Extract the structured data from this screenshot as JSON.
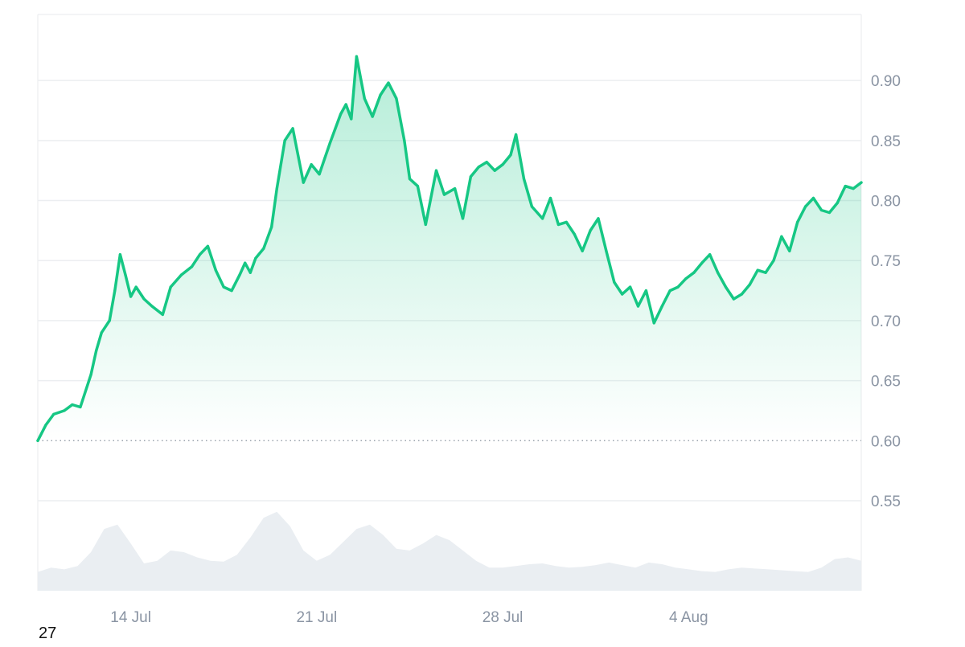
{
  "chart_data": {
    "type": "line",
    "title": "",
    "xlabel": "",
    "ylabel": "",
    "x_tick_labels": [
      "14 Jul",
      "21 Jul",
      "28 Jul",
      "4 Aug"
    ],
    "x_tick_values": [
      3.5,
      10.5,
      17.5,
      24.5
    ],
    "x_range": [
      0,
      31
    ],
    "ylim": [
      0.475,
      0.955
    ],
    "y_ticks": [
      0.55,
      0.6,
      0.65,
      0.7,
      0.75,
      0.8,
      0.85,
      0.9
    ],
    "y_tick_labels": [
      "0.55",
      "0.60",
      "0.65",
      "0.70",
      "0.75",
      "0.80",
      "0.85",
      "0.90"
    ],
    "baseline": 0.6,
    "grid": true,
    "series": [
      {
        "color": "#16c784",
        "x": [
          0,
          0.3,
          0.6,
          1.0,
          1.3,
          1.6,
          2.0,
          2.2,
          2.4,
          2.7,
          2.9,
          3.1,
          3.3,
          3.5,
          3.7,
          4.0,
          4.3,
          4.7,
          5.0,
          5.4,
          5.8,
          6.1,
          6.4,
          6.7,
          7.0,
          7.3,
          7.6,
          7.8,
          8.0,
          8.2,
          8.5,
          8.8,
          9.0,
          9.3,
          9.6,
          10.0,
          10.3,
          10.6,
          10.8,
          11.0,
          11.2,
          11.4,
          11.6,
          11.8,
          12.0,
          12.3,
          12.6,
          12.9,
          13.2,
          13.5,
          13.8,
          14.0,
          14.3,
          14.6,
          15.0,
          15.3,
          15.7,
          16.0,
          16.3,
          16.6,
          16.9,
          17.2,
          17.5,
          17.8,
          18.0,
          18.3,
          18.6,
          19.0,
          19.3,
          19.6,
          19.9,
          20.2,
          20.5,
          20.8,
          21.1,
          21.4,
          21.7,
          22.0,
          22.3,
          22.6,
          22.9,
          23.2,
          23.5,
          23.8,
          24.1,
          24.4,
          24.7,
          25.0,
          25.3,
          25.6,
          25.9,
          26.2,
          26.5,
          26.8,
          27.1,
          27.4,
          27.7,
          28.0,
          28.3,
          28.6,
          28.9,
          29.2,
          29.5,
          29.8,
          30.1,
          30.4,
          30.7,
          31.0
        ],
        "y": [
          0.6,
          0.613,
          0.622,
          0.625,
          0.63,
          0.628,
          0.655,
          0.675,
          0.69,
          0.7,
          0.725,
          0.755,
          0.738,
          0.72,
          0.728,
          0.718,
          0.712,
          0.705,
          0.728,
          0.738,
          0.745,
          0.755,
          0.762,
          0.742,
          0.728,
          0.725,
          0.738,
          0.748,
          0.74,
          0.752,
          0.76,
          0.778,
          0.81,
          0.85,
          0.86,
          0.815,
          0.83,
          0.822,
          0.835,
          0.848,
          0.86,
          0.872,
          0.88,
          0.868,
          0.92,
          0.885,
          0.87,
          0.888,
          0.898,
          0.885,
          0.85,
          0.818,
          0.812,
          0.78,
          0.825,
          0.805,
          0.81,
          0.785,
          0.82,
          0.828,
          0.832,
          0.825,
          0.83,
          0.838,
          0.855,
          0.818,
          0.795,
          0.785,
          0.802,
          0.78,
          0.782,
          0.772,
          0.758,
          0.775,
          0.785,
          0.758,
          0.732,
          0.722,
          0.728,
          0.712,
          0.725,
          0.698,
          0.712,
          0.725,
          0.728,
          0.735,
          0.74,
          0.748,
          0.755,
          0.74,
          0.728,
          0.718,
          0.722,
          0.73,
          0.742,
          0.74,
          0.75,
          0.77,
          0.758,
          0.782,
          0.795,
          0.802,
          0.792,
          0.79,
          0.798,
          0.812,
          0.81,
          0.815
        ]
      }
    ],
    "volume": [
      0.05,
      0.1,
      0.08,
      0.12,
      0.28,
      0.55,
      0.6,
      0.38,
      0.15,
      0.18,
      0.3,
      0.28,
      0.22,
      0.18,
      0.17,
      0.25,
      0.45,
      0.68,
      0.75,
      0.58,
      0.3,
      0.18,
      0.25,
      0.4,
      0.55,
      0.6,
      0.48,
      0.32,
      0.3,
      0.38,
      0.48,
      0.42,
      0.3,
      0.18,
      0.1,
      0.1,
      0.12,
      0.14,
      0.15,
      0.12,
      0.1,
      0.11,
      0.13,
      0.16,
      0.13,
      0.1,
      0.16,
      0.14,
      0.1,
      0.08,
      0.06,
      0.05,
      0.08,
      0.1,
      0.09,
      0.08,
      0.07,
      0.06,
      0.05,
      0.1,
      0.2,
      0.22,
      0.18
    ]
  },
  "footnote": "27",
  "colors": {
    "line": "#16c784",
    "area_top": "#16c784",
    "grid": "#eceef1",
    "baseline": "#9aa3ad",
    "volume": "#eaeef2",
    "axis_text": "#8a94a3"
  }
}
